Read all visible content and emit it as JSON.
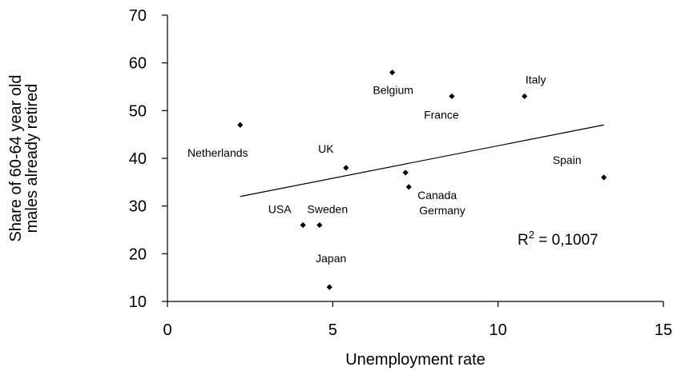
{
  "chart_data": {
    "type": "scatter",
    "title": "",
    "xlabel": "Unemployment rate",
    "ylabel_lines": [
      "Share of 60-64 year old",
      "males already retired"
    ],
    "xlim": [
      0,
      15
    ],
    "ylim": [
      10,
      70
    ],
    "x_ticks": [
      0,
      5,
      10,
      15
    ],
    "y_ticks": [
      10,
      20,
      30,
      40,
      50,
      60,
      70
    ],
    "grid": false,
    "points": [
      {
        "label": "Netherlands",
        "x": 2.2,
        "y": 47
      },
      {
        "label": "UK",
        "x": 5.4,
        "y": 38
      },
      {
        "label": "USA",
        "x": 4.1,
        "y": 26
      },
      {
        "label": "Sweden",
        "x": 4.6,
        "y": 26
      },
      {
        "label": "Japan",
        "x": 4.9,
        "y": 13
      },
      {
        "label": "Belgium",
        "x": 6.8,
        "y": 58
      },
      {
        "label": "France",
        "x": 8.6,
        "y": 53
      },
      {
        "label": "Italy",
        "x": 10.8,
        "y": 53
      },
      {
        "label": "Canada",
        "x": 7.2,
        "y": 37
      },
      {
        "label": "Germany",
        "x": 7.3,
        "y": 34
      },
      {
        "label": "Spain",
        "x": 13.2,
        "y": 36
      }
    ],
    "trendline": {
      "x": [
        2.2,
        13.2
      ],
      "y": [
        32,
        47
      ]
    },
    "annotation": {
      "base": "R",
      "sup": "2",
      "rest": " = 0,1007"
    }
  }
}
